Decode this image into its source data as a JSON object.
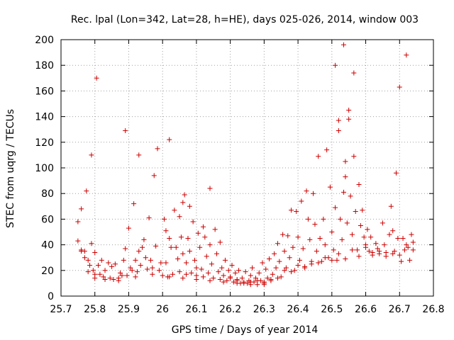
{
  "chart_data": {
    "type": "scatter",
    "title": "Rec. lpal (Lon=342, Lat=28, h=HE), days 025-026, 2014, window 003",
    "xlabel": "GPS time / Days of year 2014",
    "ylabel": "STEC from uqrg / TECUs",
    "xlim": [
      25.7,
      26.8
    ],
    "ylim": [
      0,
      200
    ],
    "x_ticks": [
      25.7,
      25.8,
      25.9,
      26.0,
      26.1,
      26.2,
      26.3,
      26.4,
      26.5,
      26.6,
      26.7,
      26.8
    ],
    "x_tick_labels": [
      "25.7",
      "25.8",
      "25.9",
      "26",
      "26.1",
      "26.2",
      "26.3",
      "26.4",
      "26.5",
      "26.6",
      "26.7",
      "26.8"
    ],
    "y_ticks": [
      0,
      20,
      40,
      60,
      80,
      100,
      120,
      140,
      160,
      180,
      200
    ],
    "y_tick_labels": [
      "0",
      "20",
      "40",
      "60",
      "80",
      "100",
      "120",
      "140",
      "160",
      "180",
      "200"
    ],
    "grid": true,
    "marker": "plus",
    "color": "#cc0000",
    "series": [
      {
        "points": [
          [
            25.75,
            58
          ],
          [
            25.75,
            43
          ],
          [
            25.76,
            35
          ],
          [
            25.76,
            68
          ],
          [
            25.77,
            35
          ],
          [
            25.77,
            30
          ],
          [
            25.775,
            82
          ],
          [
            25.78,
            28
          ],
          [
            25.785,
            24
          ],
          [
            25.79,
            110
          ],
          [
            25.79,
            41
          ],
          [
            25.795,
            20
          ],
          [
            25.8,
            34
          ],
          [
            25.8,
            17
          ],
          [
            25.805,
            170
          ],
          [
            25.81,
            24
          ],
          [
            25.815,
            17
          ],
          [
            25.82,
            28
          ],
          [
            25.825,
            15
          ],
          [
            25.83,
            20
          ],
          [
            25.84,
            26
          ],
          [
            25.845,
            14
          ],
          [
            25.85,
            23
          ],
          [
            25.855,
            13
          ],
          [
            25.86,
            25
          ],
          [
            25.87,
            14
          ],
          [
            25.875,
            18
          ],
          [
            25.88,
            16
          ],
          [
            25.885,
            28
          ],
          [
            25.89,
            129
          ],
          [
            25.89,
            37
          ],
          [
            25.895,
            16
          ],
          [
            25.9,
            53
          ],
          [
            25.905,
            22
          ],
          [
            25.91,
            20
          ],
          [
            25.915,
            72
          ],
          [
            25.92,
            28
          ],
          [
            25.925,
            19
          ],
          [
            25.93,
            110
          ],
          [
            25.93,
            35
          ],
          [
            25.935,
            24
          ],
          [
            25.94,
            38
          ],
          [
            25.945,
            44
          ],
          [
            25.95,
            30
          ],
          [
            25.955,
            21
          ],
          [
            25.96,
            61
          ],
          [
            25.965,
            28
          ],
          [
            25.97,
            22
          ],
          [
            25.975,
            94
          ],
          [
            25.98,
            39
          ],
          [
            25.985,
            115
          ],
          [
            25.99,
            20
          ],
          [
            25.995,
            26
          ],
          [
            26.0,
            16
          ],
          [
            26.005,
            60
          ],
          [
            26.01,
            51
          ],
          [
            26.01,
            26
          ],
          [
            26.015,
            15
          ],
          [
            26.02,
            122
          ],
          [
            26.02,
            45
          ],
          [
            26.025,
            38
          ],
          [
            26.03,
            17
          ],
          [
            26.035,
            67
          ],
          [
            26.04,
            38
          ],
          [
            26.045,
            29
          ],
          [
            26.05,
            62
          ],
          [
            26.05,
            19
          ],
          [
            26.055,
            46
          ],
          [
            26.06,
            73
          ],
          [
            26.06,
            33
          ],
          [
            26.065,
            79
          ],
          [
            26.07,
            26
          ],
          [
            26.07,
            17
          ],
          [
            26.075,
            45
          ],
          [
            26.08,
            70
          ],
          [
            26.08,
            35
          ],
          [
            26.085,
            18
          ],
          [
            26.09,
            58
          ],
          [
            26.095,
            28
          ],
          [
            26.1,
            22
          ],
          [
            26.1,
            16
          ],
          [
            26.105,
            49
          ],
          [
            26.11,
            38
          ],
          [
            26.115,
            21
          ],
          [
            26.12,
            54
          ],
          [
            26.12,
            15
          ],
          [
            26.125,
            46
          ],
          [
            26.13,
            31
          ],
          [
            26.135,
            18
          ],
          [
            26.14,
            84
          ],
          [
            26.14,
            40
          ],
          [
            26.145,
            25
          ],
          [
            26.15,
            14
          ],
          [
            26.155,
            52
          ],
          [
            26.16,
            33
          ],
          [
            26.165,
            19
          ],
          [
            26.17,
            42
          ],
          [
            26.17,
            13
          ],
          [
            26.175,
            22
          ],
          [
            26.18,
            16
          ],
          [
            26.185,
            28
          ],
          [
            26.19,
            12
          ],
          [
            26.195,
            20
          ],
          [
            26.2,
            15
          ],
          [
            26.205,
            24
          ],
          [
            26.21,
            11
          ],
          [
            26.215,
            18
          ],
          [
            26.22,
            13
          ],
          [
            26.225,
            20
          ],
          [
            26.23,
            10
          ],
          [
            26.235,
            14
          ],
          [
            26.24,
            11
          ],
          [
            26.245,
            19
          ],
          [
            26.25,
            10
          ],
          [
            26.255,
            12
          ],
          [
            26.26,
            16
          ],
          [
            26.265,
            22
          ],
          [
            26.27,
            11
          ],
          [
            26.275,
            14
          ],
          [
            26.28,
            9
          ],
          [
            26.285,
            18
          ],
          [
            26.29,
            12
          ],
          [
            26.295,
            26
          ],
          [
            26.3,
            10
          ],
          [
            26.305,
            21
          ],
          [
            26.31,
            14
          ],
          [
            26.315,
            29
          ],
          [
            26.32,
            12
          ],
          [
            26.325,
            17
          ],
          [
            26.33,
            33
          ],
          [
            26.335,
            22
          ],
          [
            26.34,
            41
          ],
          [
            26.345,
            27
          ],
          [
            26.35,
            15
          ],
          [
            26.355,
            48
          ],
          [
            26.36,
            35
          ],
          [
            26.365,
            22
          ],
          [
            26.37,
            47
          ],
          [
            26.375,
            30
          ],
          [
            26.38,
            67
          ],
          [
            26.385,
            38
          ],
          [
            26.39,
            20
          ],
          [
            26.395,
            66
          ],
          [
            26.4,
            46
          ],
          [
            26.405,
            28
          ],
          [
            26.41,
            74
          ],
          [
            26.415,
            37
          ],
          [
            26.42,
            22
          ],
          [
            26.425,
            82
          ],
          [
            26.43,
            60
          ],
          [
            26.435,
            44
          ],
          [
            26.44,
            25
          ],
          [
            26.445,
            80
          ],
          [
            26.45,
            56
          ],
          [
            26.455,
            35
          ],
          [
            26.46,
            109
          ],
          [
            26.465,
            45
          ],
          [
            26.47,
            27
          ],
          [
            26.475,
            60
          ],
          [
            26.48,
            40
          ],
          [
            26.485,
            114
          ],
          [
            26.49,
            30
          ],
          [
            26.495,
            85
          ],
          [
            26.5,
            50
          ],
          [
            26.505,
            36
          ],
          [
            26.51,
            180
          ],
          [
            26.51,
            69
          ],
          [
            26.515,
            28
          ],
          [
            26.52,
            137
          ],
          [
            26.52,
            129
          ],
          [
            26.525,
            60
          ],
          [
            26.53,
            44
          ],
          [
            26.535,
            81
          ],
          [
            26.535,
            196
          ],
          [
            26.54,
            105
          ],
          [
            26.54,
            93
          ],
          [
            26.545,
            57
          ],
          [
            26.55,
            145
          ],
          [
            26.55,
            138
          ],
          [
            26.555,
            78
          ],
          [
            26.56,
            48
          ],
          [
            26.565,
            174
          ],
          [
            26.565,
            109
          ],
          [
            26.57,
            66
          ],
          [
            26.575,
            36
          ],
          [
            26.58,
            87
          ],
          [
            26.585,
            55
          ],
          [
            26.59,
            67
          ],
          [
            26.595,
            46
          ],
          [
            26.6,
            40
          ],
          [
            26.605,
            52
          ],
          [
            26.61,
            35
          ],
          [
            26.615,
            46
          ],
          [
            26.62,
            34
          ],
          [
            26.63,
            41
          ],
          [
            26.635,
            37
          ],
          [
            26.64,
            33
          ],
          [
            26.65,
            57
          ],
          [
            26.655,
            40
          ],
          [
            26.66,
            34
          ],
          [
            26.67,
            48
          ],
          [
            26.675,
            70
          ],
          [
            26.68,
            51
          ],
          [
            26.685,
            35
          ],
          [
            26.69,
            96
          ],
          [
            26.695,
            45
          ],
          [
            26.7,
            163
          ],
          [
            26.705,
            27
          ],
          [
            26.71,
            45
          ],
          [
            26.715,
            36
          ],
          [
            26.72,
            188
          ],
          [
            26.725,
            38
          ],
          [
            26.73,
            28
          ],
          [
            26.735,
            48
          ],
          [
            26.74,
            42
          ],
          [
            25.76,
            36
          ],
          [
            25.78,
            19
          ],
          [
            25.8,
            14
          ],
          [
            25.83,
            13
          ],
          [
            25.87,
            12
          ],
          [
            25.92,
            15
          ],
          [
            25.97,
            17
          ],
          [
            26.02,
            15
          ],
          [
            26.06,
            14
          ],
          [
            26.1,
            13
          ],
          [
            26.14,
            12
          ],
          [
            26.18,
            11
          ],
          [
            26.22,
            10
          ],
          [
            26.26,
            9
          ],
          [
            26.3,
            11
          ],
          [
            26.34,
            14
          ],
          [
            26.38,
            19
          ],
          [
            26.42,
            23
          ],
          [
            26.46,
            26
          ],
          [
            26.5,
            28
          ],
          [
            26.54,
            29
          ],
          [
            26.58,
            31
          ],
          [
            26.62,
            32
          ],
          [
            26.66,
            31
          ],
          [
            26.7,
            32
          ],
          [
            26.74,
            36
          ],
          [
            26.2,
            14
          ],
          [
            26.22,
            12
          ],
          [
            26.24,
            10
          ],
          [
            26.26,
            11
          ],
          [
            26.28,
            12
          ],
          [
            26.3,
            9
          ],
          [
            26.32,
            13
          ],
          [
            26.36,
            20
          ],
          [
            26.4,
            24
          ],
          [
            26.44,
            27
          ],
          [
            26.48,
            30
          ],
          [
            26.52,
            33
          ],
          [
            26.56,
            36
          ],
          [
            26.6,
            38
          ],
          [
            26.64,
            35
          ],
          [
            26.68,
            33
          ],
          [
            26.72,
            40
          ]
        ]
      }
    ]
  }
}
